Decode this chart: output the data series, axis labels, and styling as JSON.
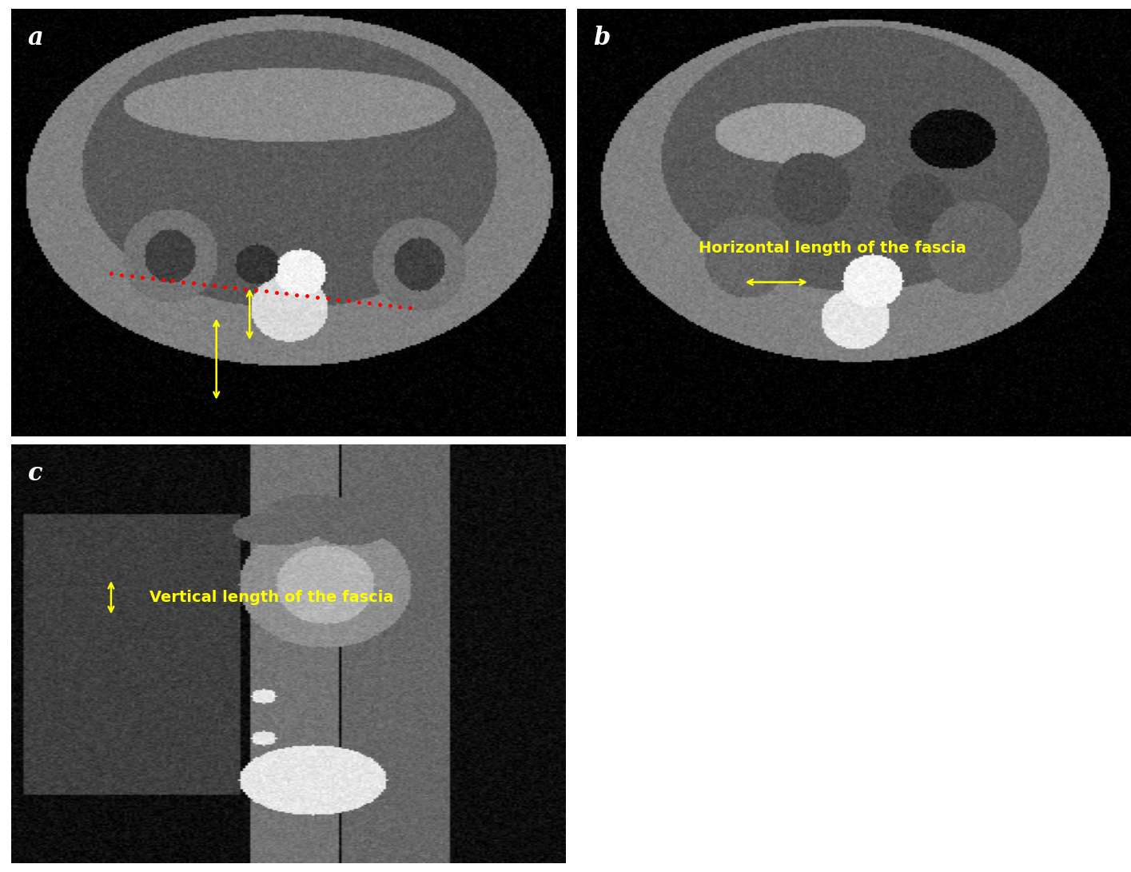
{
  "panel_labels": [
    "a",
    "b",
    "c"
  ],
  "panel_label_color": "white",
  "panel_label_fontsize": 22,
  "annotation_color": "#FFFF00",
  "annotation_fontsize": 14,
  "background_color": "black",
  "figure_bg": "white",
  "panel_a_label": "a",
  "panel_b_label": "b",
  "panel_c_label": "c",
  "label_b_text": "Horizontal length of the fascia",
  "label_c_text": "Vertical length of the fascia",
  "fig_width": 14.15,
  "fig_height": 10.91
}
